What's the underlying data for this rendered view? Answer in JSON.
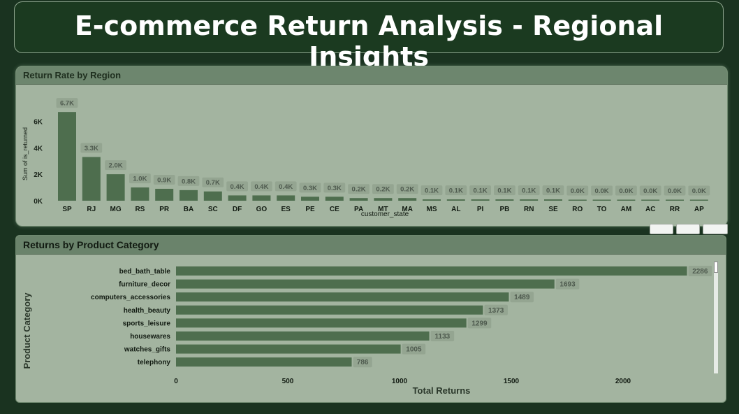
{
  "dashboard": {
    "title": "E-commerce Return Analysis - Regional Insights"
  },
  "colors": {
    "background": "#1a3320",
    "panel": "#a3b4a0",
    "panel_header": "#6d866e",
    "bar": "#4e6e4e",
    "label_bg": "#94a591"
  },
  "chart_data": [
    {
      "type": "bar",
      "title": "Return Rate by Region",
      "xlabel": "customer_state",
      "ylabel": "Sum of is_returned",
      "categories": [
        "SP",
        "RJ",
        "MG",
        "RS",
        "PR",
        "BA",
        "SC",
        "DF",
        "GO",
        "ES",
        "PE",
        "CE",
        "PA",
        "MT",
        "MA",
        "MS",
        "AL",
        "PI",
        "PB",
        "RN",
        "SE",
        "RO",
        "TO",
        "AM",
        "AC",
        "RR",
        "AP"
      ],
      "values": [
        6700,
        3300,
        2000,
        1000,
        900,
        800,
        700,
        400,
        400,
        400,
        300,
        300,
        200,
        200,
        200,
        100,
        100,
        100,
        100,
        100,
        100,
        0,
        0,
        0,
        0,
        0,
        0
      ],
      "data_labels": [
        "6.7K",
        "3.3K",
        "2.0K",
        "1.0K",
        "0.9K",
        "0.8K",
        "0.7K",
        "0.4K",
        "0.4K",
        "0.4K",
        "0.3K",
        "0.3K",
        "0.2K",
        "0.2K",
        "0.2K",
        "0.1K",
        "0.1K",
        "0.1K",
        "0.1K",
        "0.1K",
        "0.1K",
        "0.0K",
        "0.0K",
        "0.0K",
        "0.0K",
        "0.0K",
        "0.0K"
      ],
      "yticks": [
        "0K",
        "2K",
        "4K",
        "6K"
      ],
      "ylim": [
        0,
        7500
      ],
      "grid": false
    },
    {
      "type": "bar",
      "orientation": "horizontal",
      "title": "Returns by Product Category",
      "xlabel": "Total Returns",
      "ylabel": "Product Category",
      "categories": [
        "bed_bath_table",
        "furniture_decor",
        "computers_accessories",
        "health_beauty",
        "sports_leisure",
        "housewares",
        "watches_gifts",
        "telephony"
      ],
      "values": [
        2286,
        1693,
        1489,
        1373,
        1299,
        1133,
        1005,
        786
      ],
      "xticks": [
        "0",
        "500",
        "1000",
        "1500",
        "2000"
      ],
      "xlim": [
        0,
        2400
      ],
      "grid": false
    }
  ]
}
